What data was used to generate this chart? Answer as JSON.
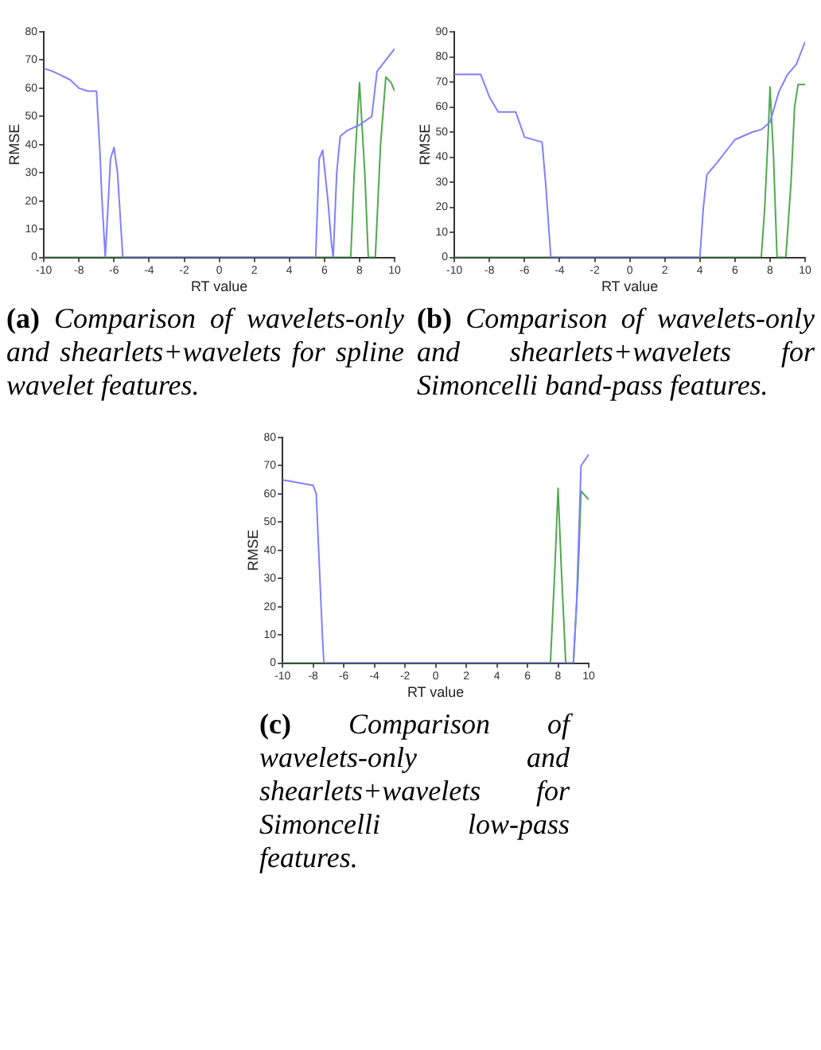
{
  "chart_data": [
    {
      "type": "line",
      "xlabel": "RT value",
      "ylabel": "RMSE",
      "xlim": [
        -10,
        10
      ],
      "xticks": [
        -10,
        -8,
        -6,
        -4,
        -2,
        0,
        2,
        4,
        6,
        8,
        10
      ],
      "ylim": [
        0,
        80
      ],
      "yticks": [
        0,
        10,
        20,
        30,
        40,
        50,
        60,
        70,
        80
      ],
      "grid": false,
      "legend": false,
      "series": [
        {
          "color": "#8080ff",
          "x": [
            -10,
            -9.5,
            -8.5,
            -8,
            -7.5,
            -7,
            -6.8,
            -6.7,
            -6.5,
            -6.2,
            -6,
            -5.8,
            -5.6,
            -5.5,
            5.5,
            5.7,
            5.9,
            6.2,
            6.4,
            6.5,
            6.7,
            6.9,
            7.3,
            8,
            8.7,
            9,
            10
          ],
          "values": [
            67,
            66,
            63,
            60,
            59,
            59,
            37,
            22,
            0,
            35,
            39,
            30,
            10,
            0,
            0,
            35,
            38,
            20,
            5,
            0,
            30,
            43,
            45,
            47,
            50,
            66,
            74
          ]
        },
        {
          "color": "#50a850",
          "x": [
            -10,
            7.5,
            7.7,
            8,
            8.3,
            8.5,
            8.9,
            9.2,
            9.5,
            9.8,
            10
          ],
          "values": [
            0,
            0,
            30,
            62,
            30,
            0,
            0,
            40,
            64,
            62,
            59
          ]
        }
      ],
      "annotations": [
        "(a) Comparison of wavelets-only and shearlets+wavelets for spline wavelet features."
      ]
    },
    {
      "type": "line",
      "xlabel": "RT value",
      "ylabel": "RMSE",
      "xlim": [
        -10,
        10
      ],
      "xticks": [
        -10,
        -8,
        -6,
        -4,
        -2,
        0,
        2,
        4,
        6,
        8,
        10
      ],
      "ylim": [
        0,
        90
      ],
      "yticks": [
        0,
        10,
        20,
        30,
        40,
        50,
        60,
        70,
        80,
        90
      ],
      "grid": false,
      "legend": false,
      "series": [
        {
          "color": "#8080ff",
          "x": [
            -10,
            -8.5,
            -8,
            -7.5,
            -6.5,
            -6,
            -5,
            -4.8,
            -4.6,
            -4.5,
            4,
            4.2,
            4.4,
            5,
            6,
            7,
            7.5,
            8,
            8.5,
            9,
            9.5,
            10
          ],
          "values": [
            73,
            73,
            64,
            58,
            58,
            48,
            46,
            30,
            10,
            0,
            0,
            20,
            33,
            38,
            47,
            50,
            51,
            54,
            66,
            73,
            77,
            86
          ]
        },
        {
          "color": "#50a850",
          "x": [
            -10,
            7.5,
            7.7,
            7.9,
            8,
            8.2,
            8.4,
            8.9,
            9.2,
            9.4,
            9.6,
            10
          ],
          "values": [
            0,
            0,
            20,
            50,
            68,
            40,
            0,
            0,
            30,
            60,
            69,
            69
          ]
        }
      ],
      "annotations": [
        "(b) Comparison of wavelets-only and shearlets+wavelets for Simoncelli band-pass features."
      ]
    },
    {
      "type": "line",
      "xlabel": "RT value",
      "ylabel": "RMSE",
      "xlim": [
        -10,
        10
      ],
      "xticks": [
        -10,
        -8,
        -6,
        -4,
        -2,
        0,
        2,
        4,
        6,
        8,
        10
      ],
      "ylim": [
        0,
        80
      ],
      "yticks": [
        0,
        10,
        20,
        30,
        40,
        50,
        60,
        70,
        80
      ],
      "grid": false,
      "legend": false,
      "series": [
        {
          "color": "#8080ff",
          "x": [
            -10,
            -9,
            -8,
            -7.8,
            -7.6,
            -7.4,
            -7.3,
            9,
            9.2,
            9.5,
            10
          ],
          "values": [
            65,
            64,
            63,
            60,
            35,
            10,
            0,
            0,
            20,
            70,
            74
          ]
        },
        {
          "color": "#50a850",
          "x": [
            -10,
            7.5,
            7.8,
            8,
            8.2,
            8.5,
            9,
            9.3,
            9.5,
            10
          ],
          "values": [
            0,
            0,
            35,
            62,
            35,
            0,
            0,
            30,
            61,
            58
          ]
        }
      ],
      "annotations": [
        "(c) Comparison of wavelets-only and shearlets+wavelets for Simoncelli low-pass features."
      ]
    }
  ]
}
